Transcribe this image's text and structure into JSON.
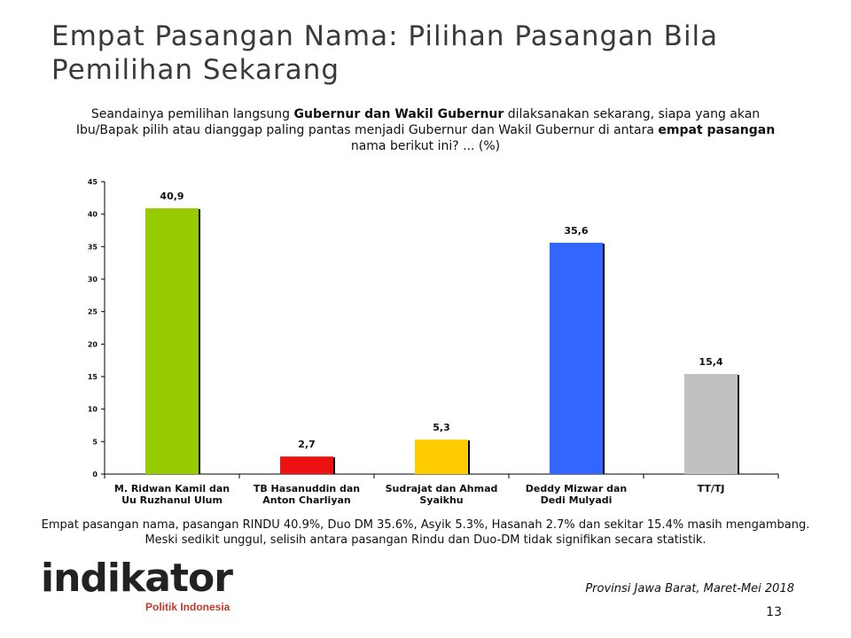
{
  "header": {
    "title": "Empat Pasangan Nama: Pilihan Pasangan Bila Pemilihan Sekarang"
  },
  "question": {
    "part1": "Seandainya pemilihan langsung ",
    "bold1": "Gubernur dan Wakil Gubernur",
    "part2": " dilaksanakan sekarang, siapa yang akan Ibu/Bapak pilih atau dianggap paling pantas menjadi Gubernur dan Wakil Gubernur di antara ",
    "bold2": "empat pasangan",
    "part3": " nama berikut ini? ... (%)"
  },
  "chart_data": {
    "type": "bar",
    "categories": [
      [
        "M. Ridwan Kamil dan",
        "Uu Ruzhanul Ulum"
      ],
      [
        "TB Hasanuddin dan",
        "Anton Charliyan"
      ],
      [
        "Sudrajat dan Ahmad",
        "Syaikhu"
      ],
      [
        "Deddy Mizwar dan",
        "Dedi Mulyadi"
      ],
      [
        "TT/TJ"
      ]
    ],
    "values": [
      40.9,
      2.7,
      5.3,
      35.6,
      15.4
    ],
    "value_labels": [
      "40,9",
      "2,7",
      "5,3",
      "35,6",
      "15,4"
    ],
    "colors": [
      "#99cc00",
      "#ee1111",
      "#ffcc00",
      "#3366ff",
      "#c0c0c0"
    ],
    "ylim": [
      0,
      45
    ],
    "yticks": [
      0,
      5,
      10,
      15,
      20,
      25,
      30,
      35,
      40,
      45
    ],
    "grid": false
  },
  "summary": "Empat pasangan nama, pasangan RINDU 40.9%, Duo DM 35.6%, Asyik 5.3%, Hasanah 2.7% dan sekitar 15.4% masih mengambang. Meski sedikit unggul, selisih antara pasangan Rindu dan Duo-DM tidak signifikan secara statistik.",
  "logo": {
    "name": "indikator",
    "tagline": "Politik Indonesia"
  },
  "source": "Provinsi Jawa Barat, Maret-Mei 2018",
  "page_number": "13"
}
